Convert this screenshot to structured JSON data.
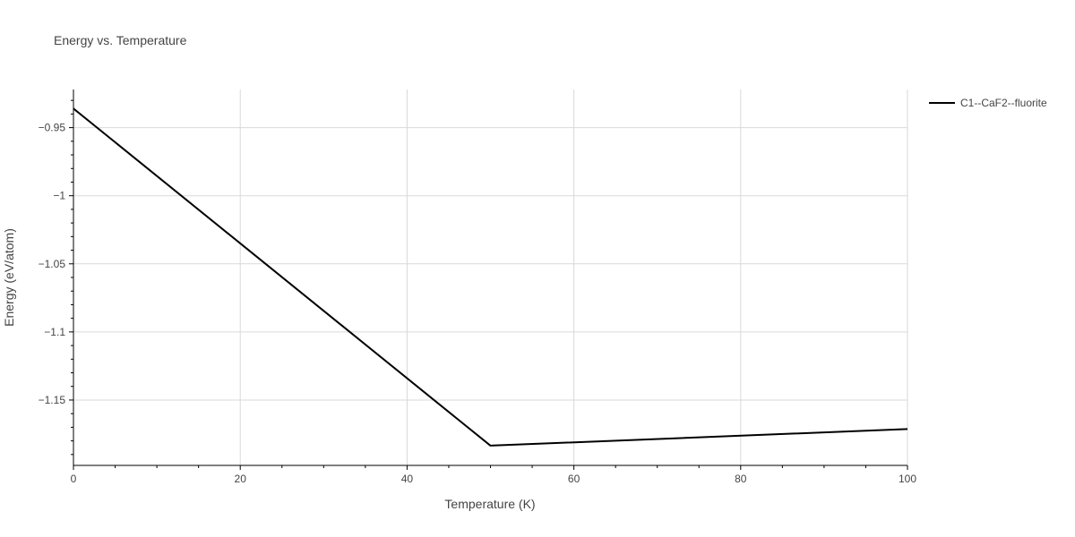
{
  "chart_data": {
    "type": "line",
    "title": "Energy vs. Temperature",
    "xlabel": "Temperature (K)",
    "ylabel": "Energy (eV/atom)",
    "xlim": [
      0,
      100
    ],
    "ylim": [
      -1.198,
      -0.922
    ],
    "x_ticks": [
      0,
      20,
      40,
      60,
      80,
      100
    ],
    "x_tick_labels": [
      "0",
      "20",
      "40",
      "60",
      "80",
      "100"
    ],
    "y_ticks": [
      -0.95,
      -1,
      -1.05,
      -1.1,
      -1.15
    ],
    "y_tick_labels": [
      "−0.95",
      "−1",
      "−1.05",
      "−1.1",
      "−1.15"
    ],
    "grid": true,
    "legend_position": "top-right",
    "series": [
      {
        "name": "C1--CaF2--fluorite",
        "color": "#000000",
        "x": [
          0,
          50,
          100
        ],
        "y": [
          -0.936,
          -1.1835,
          -1.1713
        ]
      }
    ]
  }
}
